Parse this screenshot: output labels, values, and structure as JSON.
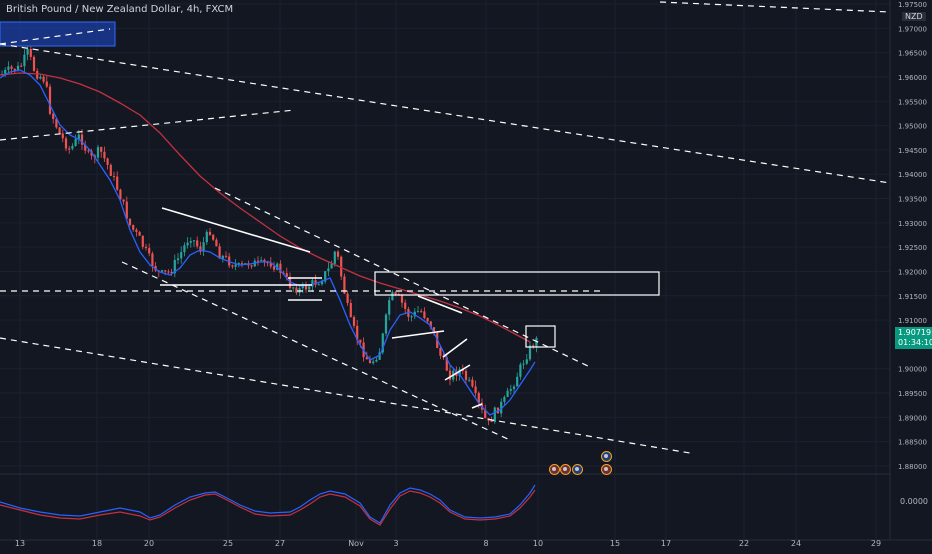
{
  "header": {
    "symbol_title": "British Pound / New Zealand Dollar, 4h, FXCM",
    "currency": "NZD"
  },
  "price_scale": {
    "labels": [
      "1.97500",
      "1.97000",
      "1.96500",
      "1.96000",
      "1.95500",
      "1.95000",
      "1.94500",
      "1.94000",
      "1.93500",
      "1.93000",
      "1.92500",
      "1.92000",
      "1.91500",
      "1.91000",
      "1.90000",
      "1.89500",
      "1.89000",
      "1.88500",
      "1.88000"
    ],
    "last_price": "1.90719",
    "countdown": "01:34:10"
  },
  "oscillator_scale": {
    "labels": [
      "0.0000"
    ]
  },
  "time_axis": {
    "labels": [
      "13",
      "18",
      "20",
      "25",
      "27",
      "Nov",
      "3",
      "8",
      "10",
      "15",
      "17",
      "22",
      "24",
      "29"
    ]
  },
  "colors": {
    "background": "#131722",
    "bull_candle": "#26a69a",
    "bear_candle": "#ef5350",
    "fast_ma": "#2962ff",
    "slow_ma": "#c2323f",
    "last_price_badge": "#089981",
    "drawing": "#ffffff",
    "zone": "#1e4bd2"
  },
  "event_icons": [
    "gb-flag-icon",
    "gb-flag-icon",
    "au-flag-icon",
    "au-flag-icon",
    "gb-flag-icon"
  ]
}
